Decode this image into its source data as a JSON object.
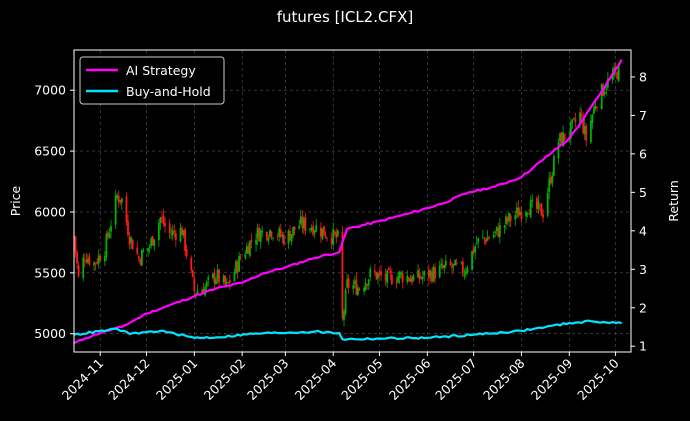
{
  "chart_data": {
    "type": "line",
    "title": "futures [ICL2.CFX]",
    "ylabel_left": "Price",
    "ylabel_right": "Return",
    "ylim_left": [
      4850,
      7330
    ],
    "ylim_right": [
      0.85,
      8.7
    ],
    "xlim": [
      "2024-10-15",
      "2025-10-11"
    ],
    "grid": true,
    "legend": {
      "placement": "top-left",
      "entries": [
        "AI Strategy",
        "Buy-and-Hold"
      ]
    },
    "y_ticks_left": [
      5000,
      5500,
      6000,
      6500,
      7000
    ],
    "y_ticks_right": [
      1,
      2,
      3,
      4,
      5,
      6,
      7,
      8
    ],
    "x_ticks": [
      "2024-11",
      "2024-12",
      "2025-01",
      "2025-02",
      "2025-03",
      "2025-04",
      "2025-05",
      "2025-06",
      "2025-07",
      "2025-08",
      "2025-09",
      "2025-10"
    ],
    "colors": {
      "ai": "#ff00ff",
      "bh": "#00e5ff",
      "up": "#00b300",
      "down": "#ff1a1a",
      "grid": "#555555"
    },
    "price_anchors": [
      [
        "2024-10-15",
        5800
      ],
      [
        "2024-10-18",
        5450
      ],
      [
        "2024-10-22",
        5650
      ],
      [
        "2024-10-28",
        5580
      ],
      [
        "2024-11-04",
        5700
      ],
      [
        "2024-11-12",
        6130
      ],
      [
        "2024-11-15",
        6100
      ],
      [
        "2024-11-20",
        5800
      ],
      [
        "2024-11-26",
        5620
      ],
      [
        "2024-12-03",
        5720
      ],
      [
        "2024-12-10",
        5950
      ],
      [
        "2024-12-16",
        5820
      ],
      [
        "2024-12-24",
        5850
      ],
      [
        "2025-01-01",
        5350
      ],
      [
        "2025-01-08",
        5380
      ],
      [
        "2025-01-15",
        5480
      ],
      [
        "2025-01-22",
        5380
      ],
      [
        "2025-02-01",
        5650
      ],
      [
        "2025-02-10",
        5820
      ],
      [
        "2025-02-20",
        5850
      ],
      [
        "2025-03-01",
        5780
      ],
      [
        "2025-03-10",
        5900
      ],
      [
        "2025-03-20",
        5880
      ],
      [
        "2025-03-28",
        5820
      ],
      [
        "2025-04-04",
        5780
      ],
      [
        "2025-04-07",
        5100
      ],
      [
        "2025-04-10",
        5400
      ],
      [
        "2025-04-18",
        5380
      ],
      [
        "2025-04-26",
        5500
      ],
      [
        "2025-05-05",
        5450
      ],
      [
        "2025-05-15",
        5480
      ],
      [
        "2025-05-25",
        5450
      ],
      [
        "2025-06-05",
        5500
      ],
      [
        "2025-06-15",
        5550
      ],
      [
        "2025-06-25",
        5520
      ],
      [
        "2025-07-03",
        5750
      ],
      [
        "2025-07-15",
        5820
      ],
      [
        "2025-07-25",
        5950
      ],
      [
        "2025-08-05",
        6050
      ],
      [
        "2025-08-15",
        6000
      ],
      [
        "2025-08-25",
        6580
      ],
      [
        "2025-09-01",
        6650
      ],
      [
        "2025-09-08",
        6800
      ],
      [
        "2025-09-12",
        6600
      ],
      [
        "2025-09-18",
        6900
      ],
      [
        "2025-09-25",
        7050
      ],
      [
        "2025-10-02",
        7150
      ],
      [
        "2025-10-05",
        7200
      ]
    ],
    "series": [
      {
        "name": "AI Strategy",
        "points": [
          [
            "2024-10-15",
            1.08
          ],
          [
            "2024-10-22",
            1.2
          ],
          [
            "2024-11-01",
            1.35
          ],
          [
            "2024-11-15",
            1.5
          ],
          [
            "2024-12-01",
            1.85
          ],
          [
            "2024-12-15",
            2.05
          ],
          [
            "2025-01-01",
            2.3
          ],
          [
            "2025-01-15",
            2.5
          ],
          [
            "2025-02-01",
            2.65
          ],
          [
            "2025-02-15",
            2.9
          ],
          [
            "2025-03-01",
            3.05
          ],
          [
            "2025-03-20",
            3.3
          ],
          [
            "2025-04-05",
            3.45
          ],
          [
            "2025-04-10",
            4.05
          ],
          [
            "2025-05-01",
            4.25
          ],
          [
            "2025-05-20",
            4.45
          ],
          [
            "2025-06-10",
            4.7
          ],
          [
            "2025-06-28",
            5.0
          ],
          [
            "2025-07-15",
            5.15
          ],
          [
            "2025-08-01",
            5.4
          ],
          [
            "2025-08-15",
            5.85
          ],
          [
            "2025-09-01",
            6.4
          ],
          [
            "2025-09-10",
            6.9
          ],
          [
            "2025-09-20",
            7.5
          ],
          [
            "2025-09-28",
            8.0
          ],
          [
            "2025-10-05",
            8.45
          ]
        ]
      },
      {
        "name": "Buy-and-Hold",
        "points": [
          [
            "2024-10-15",
            1.3
          ],
          [
            "2024-11-12",
            1.45
          ],
          [
            "2024-11-20",
            1.32
          ],
          [
            "2024-12-10",
            1.4
          ],
          [
            "2025-01-01",
            1.22
          ],
          [
            "2025-01-15",
            1.23
          ],
          [
            "2025-02-10",
            1.33
          ],
          [
            "2025-03-20",
            1.38
          ],
          [
            "2025-04-05",
            1.34
          ],
          [
            "2025-04-07",
            1.18
          ],
          [
            "2025-05-01",
            1.2
          ],
          [
            "2025-06-01",
            1.22
          ],
          [
            "2025-07-01",
            1.3
          ],
          [
            "2025-08-01",
            1.4
          ],
          [
            "2025-09-01",
            1.6
          ],
          [
            "2025-09-15",
            1.65
          ],
          [
            "2025-10-05",
            1.6
          ]
        ]
      }
    ]
  }
}
